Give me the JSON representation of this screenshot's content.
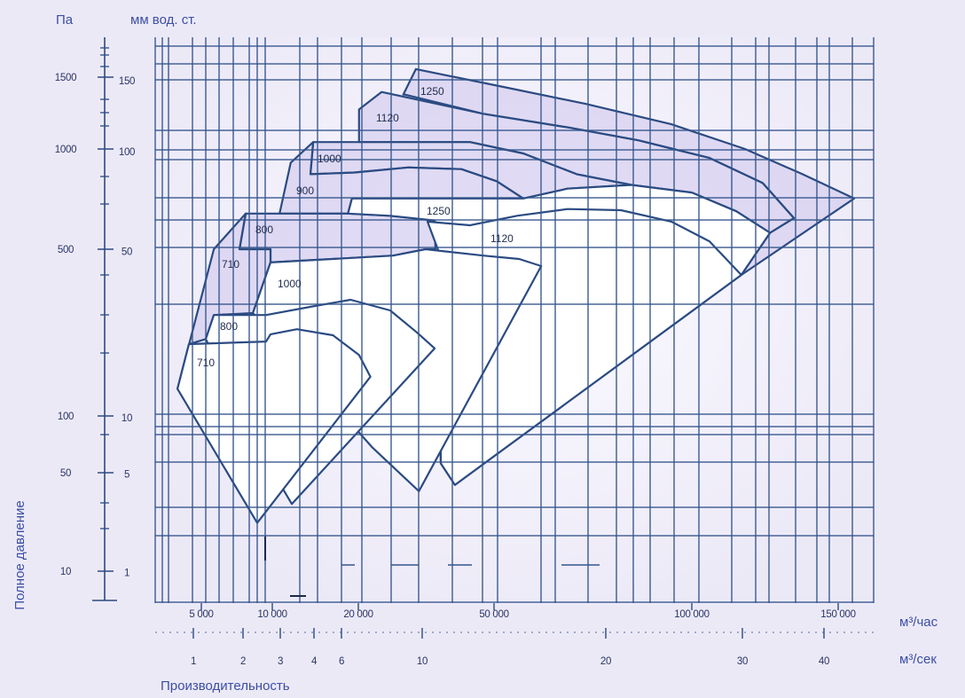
{
  "colors": {
    "background": "#ece9f7",
    "text": "#3b4fa5",
    "line": "#2b4b82",
    "grid": "#34558c",
    "upper_fill": "#cdc4ec",
    "lower_fill": "#ffffff"
  },
  "chart_data": {
    "type": "area",
    "xlabel": "Производительность",
    "ylabel": "Полное давление",
    "x_unit": "м³/час",
    "x2_unit": "м³/сек",
    "y_unit": "Па",
    "y2_unit": "мм вод. ст.",
    "xscale": "log",
    "yscale": "log",
    "xlim": [
      3200,
      165000
    ],
    "ylim": [
      6,
      1800
    ],
    "grid": true,
    "x_ticks": [
      {
        "value": 5000,
        "label": "5 000"
      },
      {
        "value": 10000,
        "label": "10 000"
      },
      {
        "value": 20000,
        "label": "20 000"
      },
      {
        "value": 50000,
        "label": "50 000"
      },
      {
        "value": 100000,
        "label": "100 000"
      },
      {
        "value": 150000,
        "label": "150 000"
      }
    ],
    "x2_ticks": [
      {
        "value": 1,
        "label": "1"
      },
      {
        "value": 2,
        "label": "2"
      },
      {
        "value": 3,
        "label": "3"
      },
      {
        "value": 4,
        "label": "4"
      },
      {
        "value": 6,
        "label": "6"
      },
      {
        "value": 10,
        "label": "10"
      },
      {
        "value": 20,
        "label": "20"
      },
      {
        "value": 30,
        "label": "30"
      },
      {
        "value": 40,
        "label": "40"
      }
    ],
    "y_ticks": [
      {
        "value": 1500,
        "label": "1500"
      },
      {
        "value": 1000,
        "label": "1000"
      },
      {
        "value": 500,
        "label": "500"
      },
      {
        "value": 100,
        "label": "100"
      },
      {
        "value": 50,
        "label": "50"
      },
      {
        "value": 10,
        "label": "10"
      }
    ],
    "y2_ticks": [
      {
        "value": 150,
        "label": "150"
      },
      {
        "value": 100,
        "label": "100"
      },
      {
        "value": 50,
        "label": "50"
      },
      {
        "value": 10,
        "label": "10"
      },
      {
        "value": 5,
        "label": "5"
      },
      {
        "value": 1,
        "label": "1"
      }
    ],
    "series": [
      {
        "name": "1250",
        "group": "upper",
        "points": [
          [
            27100,
            1360
          ],
          [
            29500,
            1570
          ],
          [
            50500,
            1430
          ],
          [
            68900,
            1290
          ],
          [
            93100,
            1150
          ],
          [
            115900,
            1000
          ],
          [
            135900,
            840
          ],
          [
            156800,
            710
          ],
          [
            114700,
            390
          ],
          [
            124200,
            560
          ],
          [
            132700,
            620
          ],
          [
            121700,
            790
          ],
          [
            105000,
            940
          ],
          [
            83000,
            1050
          ],
          [
            64700,
            1130
          ],
          [
            46500,
            1220
          ],
          [
            27300,
            1360
          ]
        ]
      },
      {
        "name": "1120",
        "group": "upper",
        "points": [
          [
            20100,
            1250
          ],
          [
            23400,
            1380
          ],
          [
            46500,
            1220
          ],
          [
            64700,
            1130
          ],
          [
            83000,
            1050
          ],
          [
            105000,
            940
          ],
          [
            121700,
            790
          ],
          [
            132700,
            620
          ],
          [
            124200,
            560
          ],
          [
            113100,
            650
          ],
          [
            100000,
            740
          ],
          [
            80900,
            780
          ],
          [
            66800,
            840
          ],
          [
            55400,
            970
          ],
          [
            42500,
            1040
          ],
          [
            20100,
            1040
          ]
        ]
      },
      {
        "name": "1000",
        "group": "upper",
        "points": [
          [
            13900,
            1040
          ],
          [
            20100,
            1040
          ],
          [
            42500,
            1040
          ],
          [
            55400,
            970
          ],
          [
            66800,
            840
          ],
          [
            80900,
            780
          ],
          [
            64700,
            760
          ],
          [
            55400,
            710
          ],
          [
            50500,
            800
          ],
          [
            40100,
            870
          ],
          [
            28000,
            880
          ],
          [
            19400,
            850
          ],
          [
            13600,
            840
          ]
        ]
      },
      {
        "name": "900",
        "group": "upper",
        "points": [
          [
            11600,
            910
          ],
          [
            13900,
            1040
          ],
          [
            13600,
            840
          ],
          [
            19400,
            850
          ],
          [
            28000,
            880
          ],
          [
            40100,
            870
          ],
          [
            50500,
            800
          ],
          [
            55400,
            710
          ],
          [
            19000,
            710
          ],
          [
            18400,
            640
          ],
          [
            10600,
            640
          ]
        ]
      },
      {
        "name": "800",
        "group": "upper",
        "points": [
          [
            7710,
            640
          ],
          [
            10600,
            640
          ],
          [
            18400,
            640
          ],
          [
            24800,
            630
          ],
          [
            33500,
            610
          ],
          [
            42500,
            560
          ],
          [
            50500,
            500
          ],
          [
            31500,
            500
          ],
          [
            25300,
            470
          ],
          [
            9830,
            440
          ],
          [
            9830,
            500
          ],
          [
            7260,
            500
          ]
        ]
      },
      {
        "name": "710",
        "group": "upper",
        "points": [
          [
            5650,
            500
          ],
          [
            7710,
            640
          ],
          [
            7260,
            500
          ],
          [
            9830,
            500
          ],
          [
            9830,
            440
          ],
          [
            8270,
            270
          ],
          [
            5650,
            265
          ],
          [
            5220,
            210
          ],
          [
            4430,
            200
          ],
          [
            3960,
            130
          ]
        ]
      },
      {
        "name": "1250",
        "group": "lower",
        "points": [
          [
            18400,
            640
          ],
          [
            19000,
            710
          ],
          [
            55400,
            710
          ],
          [
            64700,
            760
          ],
          [
            80900,
            780
          ],
          [
            100000,
            740
          ],
          [
            113100,
            650
          ],
          [
            124200,
            560
          ],
          [
            114700,
            390
          ],
          [
            38400,
            41
          ],
          [
            34900,
            56
          ],
          [
            33500,
            610
          ],
          [
            24800,
            630
          ]
        ]
      },
      {
        "name": "1120",
        "group": "lower",
        "points": [
          [
            31900,
            605
          ],
          [
            42500,
            590
          ],
          [
            54200,
            630
          ],
          [
            64700,
            660
          ],
          [
            78000,
            655
          ],
          [
            93100,
            605
          ],
          [
            105000,
            528
          ],
          [
            114700,
            390
          ],
          [
            38400,
            41
          ],
          [
            34900,
            56
          ],
          [
            34900,
            463
          ]
        ]
      },
      {
        "name": "1000",
        "group": "lower",
        "points": [
          [
            8270,
            270
          ],
          [
            9830,
            440
          ],
          [
            25300,
            470
          ],
          [
            31500,
            500
          ],
          [
            46500,
            470
          ],
          [
            54600,
            455
          ],
          [
            59000,
            425
          ],
          [
            30100,
            37
          ],
          [
            22000,
            68
          ]
        ]
      },
      {
        "name": "800",
        "group": "lower",
        "points": [
          [
            5220,
            210
          ],
          [
            5650,
            265
          ],
          [
            9410,
            265
          ],
          [
            14100,
            289
          ],
          [
            18800,
            307
          ],
          [
            24800,
            277
          ],
          [
            29700,
            224
          ],
          [
            33500,
            192
          ],
          [
            11700,
            30
          ],
          [
            9410,
            58
          ]
        ]
      },
      {
        "name": "710",
        "group": "lower",
        "points": [
          [
            3960,
            130
          ],
          [
            4430,
            200
          ],
          [
            9410,
            205
          ],
          [
            9830,
            220
          ],
          [
            12200,
            231
          ],
          [
            16300,
            218
          ],
          [
            20100,
            180
          ],
          [
            21700,
            146
          ],
          [
            8630,
            22
          ]
        ]
      }
    ]
  }
}
